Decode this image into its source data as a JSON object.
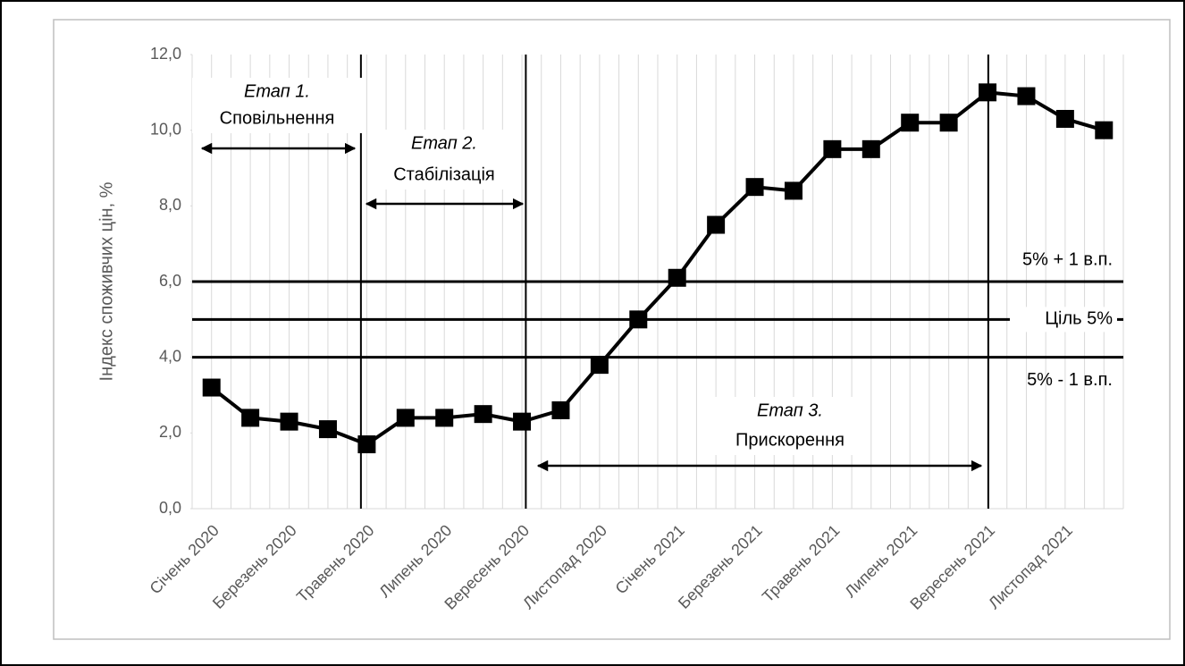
{
  "chart_data": {
    "type": "line",
    "y_label": "Індекс споживчих цін, %",
    "categories": [
      "Січень 2020",
      null,
      "Березень 2020",
      null,
      "Травень 2020",
      null,
      "Липень 2020",
      null,
      "Вересень 2020",
      null,
      "Листопад 2020",
      null,
      "Січень 2021",
      null,
      "Березень 2021",
      null,
      "Травень 2021",
      null,
      "Липень 2021",
      null,
      "Вересень 2021",
      null,
      "Листопад 2021",
      null
    ],
    "values": [
      3.2,
      2.4,
      2.3,
      2.1,
      1.7,
      2.4,
      2.4,
      2.5,
      2.3,
      2.6,
      3.8,
      5.0,
      6.1,
      7.5,
      8.5,
      8.4,
      9.5,
      9.5,
      10.2,
      10.2,
      11.0,
      10.9,
      10.3,
      10.0
    ],
    "color": "#000000",
    "ylim": [
      0,
      12
    ],
    "yticks": [
      {
        "value": 0,
        "label": "0,0"
      },
      {
        "value": 2,
        "label": "2,0"
      },
      {
        "value": 4,
        "label": "4,0"
      },
      {
        "value": 6,
        "label": "6,0"
      },
      {
        "value": 8,
        "label": "8,0"
      },
      {
        "value": 10,
        "label": "10,0"
      },
      {
        "value": 12,
        "label": "12,0"
      }
    ],
    "reference_lines": [
      {
        "value": 6,
        "label": "5% + 1 в.п."
      },
      {
        "value": 5,
        "label": "Ціль 5%"
      },
      {
        "value": 4,
        "label": "5% - 1 в.п."
      }
    ],
    "phases": [
      {
        "title": "Етап 1.",
        "label": "Сповільнення"
      },
      {
        "title": "Етап 2.",
        "label": "Стабілізація"
      },
      {
        "title": "Етап 3.",
        "label": "Прискорення"
      }
    ]
  }
}
